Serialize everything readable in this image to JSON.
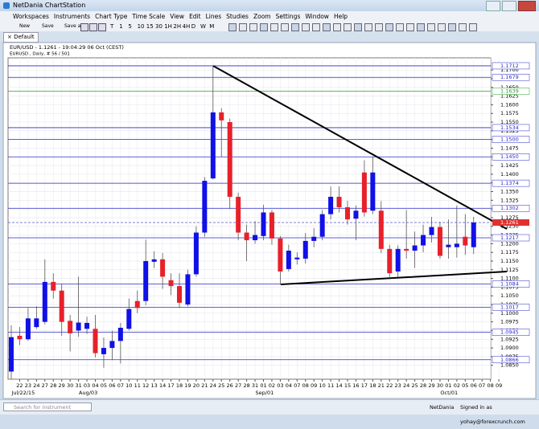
{
  "window": {
    "title": "NetDania ChartStation",
    "menu": [
      "Workspaces",
      "Instruments",
      "Chart Type",
      "Time Scale",
      "View",
      "Edit",
      "Lines",
      "Studies",
      "Zoom",
      "Settings",
      "Window",
      "Help"
    ],
    "file_buttons": [
      "New",
      "Save",
      "Save as.."
    ],
    "timeframes": [
      "T",
      "1",
      "5",
      "10",
      "15",
      "30",
      "1H",
      "2H",
      "4H",
      "D",
      "W",
      "M"
    ],
    "tab": "Default",
    "chart_header": "EUR/USD - 1.1261 - 19:04:29 06 Oct (CEST)",
    "chart_subheader": "EURUSD , Daily, # 56 / 501",
    "search_placeholder": "Search for instrument",
    "brand": "NetDania",
    "signed_in": "Signed in as yohay@forexcrunch.com"
  },
  "chart_data": {
    "type": "candlestick",
    "categories": [
      null,
      "22",
      "23",
      "24",
      "27",
      "28",
      "29",
      "30",
      "31",
      "03",
      "04",
      "05",
      "06",
      "07",
      "10",
      "11",
      "12",
      "13",
      "14",
      "17",
      "18",
      "19",
      "20",
      "21",
      "24",
      "25",
      "26",
      "27",
      "28",
      "31",
      "01",
      "02",
      "03",
      "04",
      "07",
      "08",
      "09",
      "10",
      "11",
      "14",
      "15",
      "16",
      "17",
      "18",
      "21",
      "22",
      "23",
      "24",
      "25",
      "28",
      "29",
      "30",
      "01",
      "02",
      "05",
      "06",
      "07",
      "08",
      "09"
    ],
    "period_labels": [
      "Jul/22/15",
      "Aug/03",
      "Sep/01",
      "Oct/01"
    ],
    "open": [
      1.0832,
      1.0935,
      1.0925,
      1.096,
      1.0975,
      1.109,
      1.1065,
      1.0978,
      1.095,
      1.0955,
      1.0955,
      1.0882,
      1.09,
      1.092,
      1.0955,
      1.1035,
      1.1035,
      1.1148,
      1.1155,
      1.1095,
      1.1078,
      1.1025,
      1.1112,
      1.1232,
      1.1388,
      1.1578,
      1.155,
      1.1335,
      1.1232,
      1.121,
      1.1222,
      1.129,
      1.1215,
      1.1127,
      1.1155,
      1.1157,
      1.1208,
      1.122,
      1.1285,
      1.1335,
      1.1305,
      1.1272,
      1.1405,
      1.1295,
      1.1295,
      1.1185,
      1.112,
      1.1185,
      1.118,
      1.1195,
      1.1225,
      1.1248,
      1.119,
      1.119,
      1.122,
      1.119,
      null,
      null,
      null
    ],
    "high": [
      1.0965,
      1.096,
      1.1015,
      1.102,
      1.1155,
      1.1115,
      1.1083,
      1.0995,
      1.1105,
      1.099,
      1.0995,
      1.093,
      1.095,
      1.0972,
      1.1042,
      1.1065,
      1.1212,
      1.1178,
      1.1173,
      1.1115,
      1.1115,
      1.1125,
      1.125,
      1.1392,
      1.1712,
      1.159,
      1.156,
      1.1347,
      1.1255,
      1.1265,
      1.1312,
      1.1297,
      1.1222,
      1.1197,
      1.1175,
      1.1231,
      1.1245,
      1.1297,
      1.1365,
      1.1365,
      1.1323,
      1.131,
      1.144,
      1.145,
      1.1323,
      1.1197,
      1.1195,
      1.1297,
      1.1235,
      1.1255,
      1.1277,
      1.1263,
      1.127,
      1.131,
      1.1285,
      1.1277,
      null,
      null,
      null
    ],
    "low": [
      1.081,
      1.0908,
      1.092,
      1.0955,
      1.0968,
      1.1042,
      1.0935,
      1.089,
      1.0932,
      1.094,
      1.0873,
      1.0843,
      1.0865,
      1.0855,
      1.095,
      1.1,
      1.1023,
      1.113,
      1.107,
      1.1052,
      1.1015,
      1.102,
      1.1105,
      1.122,
      1.1385,
      1.145,
      1.13,
      1.121,
      1.115,
      1.12,
      1.121,
      1.1197,
      1.1082,
      1.112,
      1.114,
      1.1143,
      1.119,
      1.121,
      1.127,
      1.129,
      1.1255,
      1.121,
      1.1278,
      1.1285,
      1.1173,
      1.1104,
      1.1104,
      1.1157,
      1.113,
      1.1175,
      1.1203,
      1.1157,
      1.1157,
      1.116,
      1.1168,
      1.117,
      null,
      null,
      null
    ],
    "close": [
      1.0931,
      1.0925,
      1.0985,
      1.0985,
      1.109,
      1.1065,
      1.0975,
      1.0942,
      1.0973,
      1.0972,
      1.0885,
      1.09,
      1.092,
      1.0958,
      1.1012,
      1.1015,
      1.115,
      1.1155,
      1.1105,
      1.1078,
      1.103,
      1.1112,
      1.1232,
      1.1381,
      1.1578,
      1.1555,
      1.1335,
      1.1232,
      1.121,
      1.1225,
      1.129,
      1.1215,
      1.112,
      1.118,
      1.116,
      1.1208,
      1.122,
      1.1285,
      1.1335,
      1.1305,
      1.127,
      1.1295,
      1.129,
      1.1405,
      1.1185,
      1.1115,
      1.1185,
      1.118,
      1.1195,
      1.1225,
      1.1248,
      1.1165,
      1.1197,
      1.12,
      1.1195,
      1.1261,
      null,
      null,
      null
    ],
    "up_color": "#1010e8",
    "down_color": "#e8202a",
    "ylim": [
      1.081,
      1.1735
    ],
    "yticks": [
      {
        "value": 1.085,
        "label": "1.0850"
      },
      1.0875,
      {
        "value": 1.09,
        "label": "1.0900"
      },
      1.0925,
      {
        "value": 1.095,
        "label": "1.0950"
      },
      1.0975,
      {
        "value": 1.1,
        "label": "1.1000"
      },
      1.1025,
      {
        "value": 1.105,
        "label": "1.1050"
      },
      1.1075,
      {
        "value": 1.11,
        "label": "1.1100"
      },
      1.1125,
      {
        "value": 1.115,
        "label": "1.1150"
      },
      1.1175,
      {
        "value": 1.12,
        "label": "1.1200"
      },
      1.1225,
      {
        "value": 1.125,
        "label": "1.1250"
      },
      1.1275,
      {
        "value": 1.13,
        "label": "1.1300"
      },
      1.1325,
      {
        "value": 1.135,
        "label": "1.1350"
      },
      1.1375,
      {
        "value": 1.14,
        "label": "1.1400"
      },
      1.1425,
      {
        "value": 1.145,
        "label": "1.1450"
      },
      1.1475,
      {
        "value": 1.15,
        "label": "1.1500"
      },
      1.1525,
      {
        "value": 1.155,
        "label": "1.1550"
      },
      1.1575,
      {
        "value": 1.16,
        "label": "1.1600"
      },
      1.1625,
      {
        "value": 1.165,
        "label": "1.1650"
      },
      1.1675,
      {
        "value": 1.17,
        "label": "1.1700"
      }
    ],
    "grid": true,
    "levels": [
      {
        "value": 1.1712,
        "color": "#2a2ac8"
      },
      {
        "value": 1.1679,
        "color": "#2a2ac8"
      },
      {
        "value": 1.1639,
        "color": "#2ca02c"
      },
      {
        "value": 1.1534,
        "color": "#2a2ac8"
      },
      {
        "value": 1.15,
        "label": "1.1500",
        "color": "#2a2ac8"
      },
      {
        "value": 1.145,
        "label": "1.1450",
        "color": "#2a2ac8"
      },
      {
        "value": 1.1374,
        "color": "#2a2ac8"
      },
      {
        "value": 1.1302,
        "color": "#2a2ac8"
      },
      {
        "value": 1.1217,
        "color": "#2a2ac8"
      },
      {
        "value": 1.1084,
        "color": "#2a2ac8"
      },
      {
        "value": 1.1017,
        "color": "#2a2ac8"
      },
      {
        "value": 1.0945,
        "color": "#2a2ac8"
      },
      {
        "value": 1.0866,
        "color": "#2a2ac8"
      }
    ],
    "last_price": 1.1261,
    "last_price_color": "#e03030"
  }
}
